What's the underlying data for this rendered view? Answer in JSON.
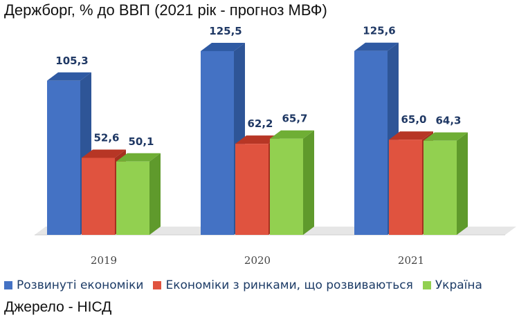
{
  "header": {
    "title": "Держборг, % до ВВП (2021 рік - прогноз МВФ)"
  },
  "footer": {
    "source": "Джерело - НІСД"
  },
  "chart_data": {
    "type": "bar",
    "title": "Держборг, % до ВВП (2021 рік - прогноз МВФ)",
    "categories": [
      "2019",
      "2020",
      "2021"
    ],
    "series": [
      {
        "name": "Розвинуті економіки",
        "values": [
          105.3,
          125.5,
          125.6
        ],
        "labels": [
          "105,3",
          "125,5",
          "125,6"
        ]
      },
      {
        "name": "Економіки з ринками, що розвиваються",
        "values": [
          52.6,
          62.2,
          65.0
        ],
        "labels": [
          "52,6",
          "62,2",
          "65,0"
        ]
      },
      {
        "name": "Україна",
        "values": [
          50.1,
          65.7,
          64.3
        ],
        "labels": [
          "50,1",
          "65,7",
          "64,3"
        ]
      }
    ],
    "xlabel": "",
    "ylabel": "",
    "ylim": [
      0,
      140
    ],
    "grid": false,
    "legend": "bottom",
    "style": "3d-column"
  },
  "colors": {
    "series": [
      {
        "front": "#4472c4",
        "side": "#2e5597",
        "top": "#2f5aa3"
      },
      {
        "front": "#e0533f",
        "side": "#a5301f",
        "top": "#b73625"
      },
      {
        "front": "#92d050",
        "side": "#5f9a2c",
        "top": "#6fae35"
      }
    ],
    "floor": "#d6d6d6"
  }
}
